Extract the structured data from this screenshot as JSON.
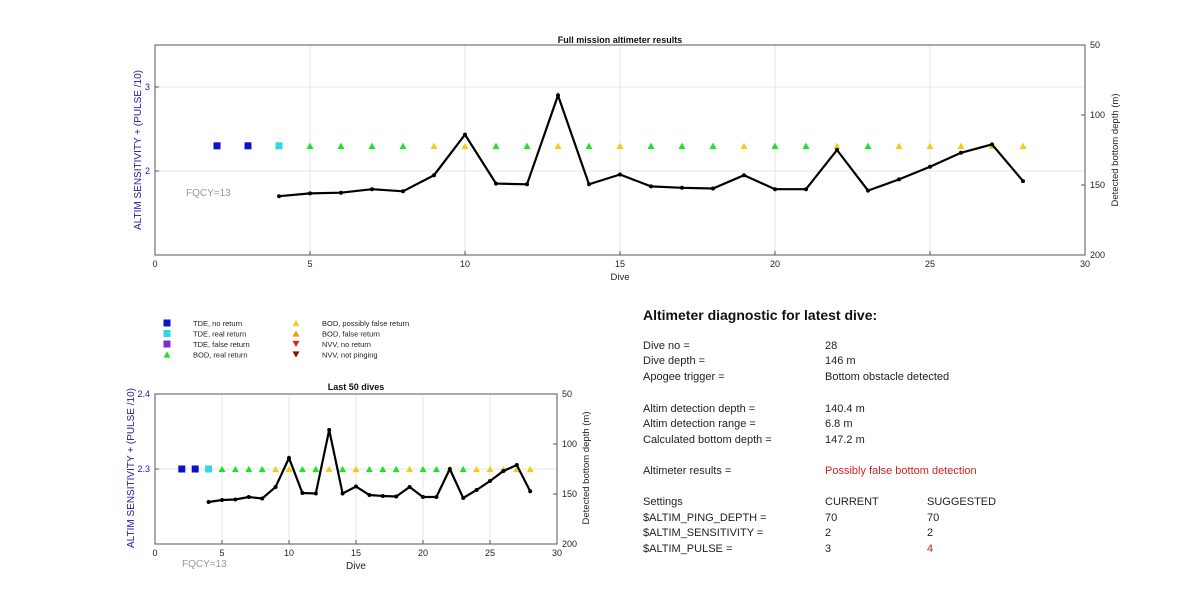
{
  "colors": {
    "axis_left": "#1a1aa6",
    "axis_right": "#222222",
    "line": "#000000",
    "fqcy": "#999999",
    "alert": "#d0231e",
    "tde_no_return": "#0b13c9",
    "tde_real_return": "#33d6e6",
    "tde_false_return": "#7d2ec7",
    "bod_real_return": "#22e02a",
    "bod_possibly_false": "#f2cc17",
    "bod_false_return": "#f29b16",
    "nvv_no_return": "#d42a19",
    "nvv_not_pinging": "#8a0d0d"
  },
  "chart_data": [
    {
      "type": "scatter",
      "id": "full",
      "title": "Full mission altimeter results",
      "xlabel": "Dive",
      "ylabel": "ALTIM SENSITIVITY + (PULSE /10)",
      "y2label": "Detected bottom depth (m)",
      "xlim": [
        0,
        30
      ],
      "ylim": [
        1,
        3.5
      ],
      "y2lim": [
        200,
        50
      ],
      "xticks": [
        0,
        5,
        10,
        15,
        20,
        25,
        30
      ],
      "yticks": [
        2,
        3
      ],
      "y2ticks": [
        50,
        100,
        150,
        200
      ],
      "annotation": "FQCY=13",
      "grid": true,
      "markers": [
        {
          "x": 2,
          "y": 2.3,
          "category": "tde_no_return"
        },
        {
          "x": 3,
          "y": 2.3,
          "category": "tde_no_return"
        },
        {
          "x": 4,
          "y": 2.3,
          "category": "tde_real_return"
        },
        {
          "x": 5,
          "y": 2.3,
          "category": "bod_real_return"
        },
        {
          "x": 6,
          "y": 2.3,
          "category": "bod_real_return"
        },
        {
          "x": 7,
          "y": 2.3,
          "category": "bod_real_return"
        },
        {
          "x": 8,
          "y": 2.3,
          "category": "bod_real_return"
        },
        {
          "x": 9,
          "y": 2.3,
          "category": "bod_possibly_false"
        },
        {
          "x": 10,
          "y": 2.3,
          "category": "bod_possibly_false"
        },
        {
          "x": 11,
          "y": 2.3,
          "category": "bod_real_return"
        },
        {
          "x": 12,
          "y": 2.3,
          "category": "bod_real_return"
        },
        {
          "x": 13,
          "y": 2.3,
          "category": "bod_possibly_false"
        },
        {
          "x": 14,
          "y": 2.3,
          "category": "bod_real_return"
        },
        {
          "x": 15,
          "y": 2.3,
          "category": "bod_possibly_false"
        },
        {
          "x": 16,
          "y": 2.3,
          "category": "bod_real_return"
        },
        {
          "x": 17,
          "y": 2.3,
          "category": "bod_real_return"
        },
        {
          "x": 18,
          "y": 2.3,
          "category": "bod_real_return"
        },
        {
          "x": 19,
          "y": 2.3,
          "category": "bod_possibly_false"
        },
        {
          "x": 20,
          "y": 2.3,
          "category": "bod_real_return"
        },
        {
          "x": 21,
          "y": 2.3,
          "category": "bod_real_return"
        },
        {
          "x": 22,
          "y": 2.3,
          "category": "bod_possibly_false"
        },
        {
          "x": 23,
          "y": 2.3,
          "category": "bod_real_return"
        },
        {
          "x": 24,
          "y": 2.3,
          "category": "bod_possibly_false"
        },
        {
          "x": 25,
          "y": 2.3,
          "category": "bod_possibly_false"
        },
        {
          "x": 26,
          "y": 2.3,
          "category": "bod_possibly_false"
        },
        {
          "x": 27,
          "y": 2.3,
          "category": "bod_possibly_false"
        },
        {
          "x": 28,
          "y": 2.3,
          "category": "bod_possibly_false"
        }
      ],
      "depth_series": {
        "x": [
          4,
          5,
          6,
          7,
          8,
          9,
          10,
          11,
          12,
          13,
          14,
          15,
          16,
          17,
          18,
          19,
          20,
          21,
          22,
          23,
          24,
          25,
          26,
          27,
          28
        ],
        "y": [
          158,
          156,
          155.5,
          153,
          154.5,
          143,
          114,
          149,
          149.5,
          86,
          149.5,
          142.5,
          151,
          152,
          152.5,
          143,
          153,
          153,
          125,
          154,
          146,
          137,
          127,
          121,
          147.2
        ]
      }
    },
    {
      "type": "scatter",
      "id": "last50",
      "title": "Last 50 dives",
      "xlabel": "Dive",
      "ylabel": "ALTIM SENSITIVITY + (PULSE /10)",
      "y2label": "Detected bottom depth (m)",
      "xlim": [
        0,
        30
      ],
      "ylim": [
        2.2,
        2.4
      ],
      "y2lim": [
        200,
        50
      ],
      "xticks": [
        0,
        5,
        10,
        15,
        20,
        25,
        30
      ],
      "yticks": [
        2.3,
        2.4
      ],
      "y2ticks": [
        50,
        100,
        150,
        200
      ],
      "annotation": "FQCY=13",
      "grid": true
    }
  ],
  "legend": {
    "items": [
      {
        "label": "TDE, no return",
        "category": "tde_no_return",
        "shape": "square"
      },
      {
        "label": "TDE, real return",
        "category": "tde_real_return",
        "shape": "square"
      },
      {
        "label": "TDE, false return",
        "category": "tde_false_return",
        "shape": "square"
      },
      {
        "label": "BOD, real return",
        "category": "bod_real_return",
        "shape": "triangle-up"
      },
      {
        "label": "BOD, possibly false return",
        "category": "bod_possibly_false",
        "shape": "triangle-up"
      },
      {
        "label": "BOD, false return",
        "category": "bod_false_return",
        "shape": "triangle-up"
      },
      {
        "label": "NVV, no return",
        "category": "nvv_no_return",
        "shape": "triangle-down"
      },
      {
        "label": "NVV, not pinging",
        "category": "nvv_not_pinging",
        "shape": "triangle-down"
      }
    ]
  },
  "diagnostic": {
    "title": "Altimeter diagnostic for latest dive:",
    "dive_no_label": "Dive no =",
    "dive_no_value": "28",
    "dive_depth_label": "Dive depth =",
    "dive_depth_value": "146 m",
    "apogee_label": "Apogee trigger =",
    "apogee_value": "Bottom obstacle detected",
    "detect_depth_label": "Altim detection depth =",
    "detect_depth_value": "140.4 m",
    "detect_range_label": "Altim detection range =",
    "detect_range_value": "6.8 m",
    "bottom_depth_label": "Calculated bottom depth =",
    "bottom_depth_value": "147.2 m",
    "results_label": "Altimeter results =",
    "results_value": "Possibly false bottom detection",
    "settings": {
      "header": "Settings",
      "current_header": "CURRENT",
      "suggested_header": "SUGGESTED",
      "rows": [
        {
          "name": "$ALTIM_PING_DEPTH =",
          "current": "70",
          "suggested": "70",
          "changed": false
        },
        {
          "name": "$ALTIM_SENSITIVITY =",
          "current": "2",
          "suggested": "2",
          "changed": false
        },
        {
          "name": "$ALTIM_PULSE =",
          "current": "3",
          "suggested": "4",
          "changed": true
        }
      ]
    }
  }
}
